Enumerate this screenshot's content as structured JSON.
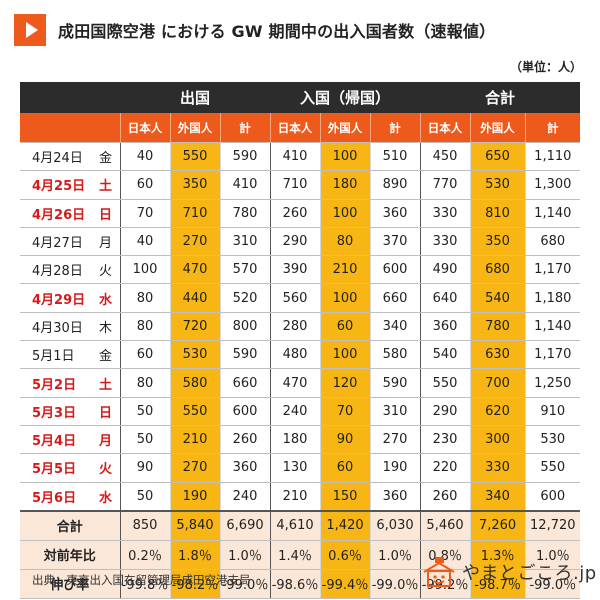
{
  "title": "成田国際空港 における GW 期間中の出入国者数（速報値）",
  "unit": "（単位：人）",
  "groups": [
    "出国",
    "入国（帰国）",
    "合計"
  ],
  "subheaders": [
    "日本人",
    "外国人",
    "計"
  ],
  "rows": [
    {
      "date": "4月24日",
      "dow": "金",
      "holiday": false,
      "v": [
        "40",
        "550",
        "590",
        "410",
        "100",
        "510",
        "450",
        "650",
        "1,110"
      ]
    },
    {
      "date": "4月25日",
      "dow": "土",
      "holiday": true,
      "v": [
        "60",
        "350",
        "410",
        "710",
        "180",
        "890",
        "770",
        "530",
        "1,300"
      ]
    },
    {
      "date": "4月26日",
      "dow": "日",
      "holiday": true,
      "v": [
        "70",
        "710",
        "780",
        "260",
        "100",
        "360",
        "330",
        "810",
        "1,140"
      ]
    },
    {
      "date": "4月27日",
      "dow": "月",
      "holiday": false,
      "v": [
        "40",
        "270",
        "310",
        "290",
        "80",
        "370",
        "330",
        "350",
        "680"
      ]
    },
    {
      "date": "4月28日",
      "dow": "火",
      "holiday": false,
      "v": [
        "100",
        "470",
        "570",
        "390",
        "210",
        "600",
        "490",
        "680",
        "1,170"
      ]
    },
    {
      "date": "4月29日",
      "dow": "水",
      "holiday": true,
      "v": [
        "80",
        "440",
        "520",
        "560",
        "100",
        "660",
        "640",
        "540",
        "1,180"
      ]
    },
    {
      "date": "4月30日",
      "dow": "木",
      "holiday": false,
      "v": [
        "80",
        "720",
        "800",
        "280",
        "60",
        "340",
        "360",
        "780",
        "1,140"
      ]
    },
    {
      "date": "5月1日",
      "dow": "金",
      "holiday": false,
      "v": [
        "60",
        "530",
        "590",
        "480",
        "100",
        "580",
        "540",
        "630",
        "1,170"
      ]
    },
    {
      "date": "5月2日",
      "dow": "土",
      "holiday": true,
      "v": [
        "80",
        "580",
        "660",
        "470",
        "120",
        "590",
        "550",
        "700",
        "1,250"
      ]
    },
    {
      "date": "5月3日",
      "dow": "日",
      "holiday": true,
      "v": [
        "50",
        "550",
        "600",
        "240",
        "70",
        "310",
        "290",
        "620",
        "910"
      ]
    },
    {
      "date": "5月4日",
      "dow": "月",
      "holiday": true,
      "v": [
        "50",
        "210",
        "260",
        "180",
        "90",
        "270",
        "230",
        "300",
        "530"
      ]
    },
    {
      "date": "5月5日",
      "dow": "火",
      "holiday": true,
      "v": [
        "90",
        "270",
        "360",
        "130",
        "60",
        "190",
        "220",
        "330",
        "550"
      ]
    },
    {
      "date": "5月6日",
      "dow": "水",
      "holiday": true,
      "v": [
        "50",
        "190",
        "240",
        "210",
        "150",
        "360",
        "260",
        "340",
        "600"
      ]
    }
  ],
  "summary": [
    {
      "label": "合計",
      "v": [
        "850",
        "5,840",
        "6,690",
        "4,610",
        "1,420",
        "6,030",
        "5,460",
        "7,260",
        "12,720"
      ]
    },
    {
      "label": "対前年比",
      "v": [
        "0.2％",
        "1.8％",
        "1.0％",
        "1.4％",
        "0.6％",
        "1.0％",
        "0.8％",
        "1.3％",
        "1.0％"
      ]
    },
    {
      "label": "伸び率",
      "v": [
        "-99.8％",
        "-98.2％",
        "-99.0％",
        "-98.6％",
        "-99.4％",
        "-99.0％",
        "-99.2％",
        "-98.7％",
        "-99.0％"
      ]
    }
  ],
  "source": "出典：東京出入国在留管理局成田空港支局",
  "logo_text": "やまとごころ.jp",
  "colors": {
    "accent": "#ee5a1c",
    "dark": "#2c2c2c",
    "highlight": "#f8b615",
    "holiday": "#d61a1a",
    "summary_bg": "#fbe7d8"
  }
}
